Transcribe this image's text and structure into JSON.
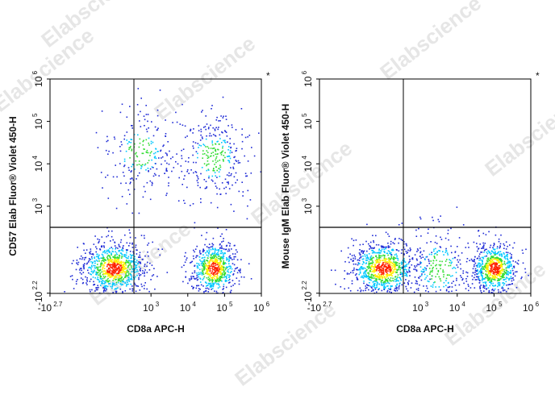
{
  "colors": {
    "frame": "#000000",
    "gate": "#000000",
    "density_low": "#1f2bd6",
    "density_mid1": "#00c8ff",
    "density_mid2": "#33dd33",
    "density_mid3": "#ffee00",
    "density_high": "#ff2200",
    "watermark": "#c9c9c9"
  },
  "watermark": {
    "text": "Elabscience",
    "symbol": "®"
  },
  "chart_data": [
    {
      "type": "scatter",
      "title": "",
      "xlabel": "CD8a APC-H",
      "ylabel": "CD57 Elab Fluor® Violet 450-H",
      "corner_mark": "*",
      "x_scale": "biexponential",
      "y_scale": "biexponential",
      "xlim": [
        -500,
        1000000
      ],
      "ylim": [
        -160,
        1000000
      ],
      "x_ticks": [
        {
          "base": "-10",
          "exp": "2.7"
        },
        {
          "base": "10",
          "exp": "3"
        },
        {
          "base": "10",
          "exp": "4"
        },
        {
          "base": "10",
          "exp": "5"
        },
        {
          "base": "10",
          "exp": "6"
        }
      ],
      "y_ticks": [
        {
          "base": "-10",
          "exp": "2.2"
        },
        {
          "base": "10",
          "exp": "3"
        },
        {
          "base": "10",
          "exp": "4"
        },
        {
          "base": "10",
          "exp": "5"
        },
        {
          "base": "10",
          "exp": "6"
        }
      ],
      "gate": {
        "x": 2000,
        "y": 500
      },
      "populations": [
        {
          "name": "CD8a- CD57-",
          "center_x": 150,
          "center_y": 20,
          "relative_density": 1.0
        },
        {
          "name": "CD8a+ CD57-",
          "center_x": 50000,
          "center_y": 20,
          "relative_density": 0.75
        },
        {
          "name": "CD8a- CD57+",
          "center_x": 500,
          "center_y": 20000,
          "relative_density": 0.25
        },
        {
          "name": "CD8a+ CD57+",
          "center_x": 50000,
          "center_y": 15000,
          "relative_density": 0.35
        }
      ]
    },
    {
      "type": "scatter",
      "title": "",
      "xlabel": "CD8a APC-H",
      "ylabel": "Mouse IgM Elab Fluor® Violet 450-H",
      "corner_mark": "*",
      "x_scale": "biexponential",
      "y_scale": "biexponential",
      "xlim": [
        -500,
        1000000
      ],
      "ylim": [
        -160,
        1000000
      ],
      "x_ticks": [
        {
          "base": "-10",
          "exp": "2.7"
        },
        {
          "base": "10",
          "exp": "3"
        },
        {
          "base": "10",
          "exp": "4"
        },
        {
          "base": "10",
          "exp": "5"
        },
        {
          "base": "10",
          "exp": "6"
        }
      ],
      "y_ticks": [
        {
          "base": "-10",
          "exp": "2.2"
        },
        {
          "base": "10",
          "exp": "3"
        },
        {
          "base": "10",
          "exp": "4"
        },
        {
          "base": "10",
          "exp": "5"
        },
        {
          "base": "10",
          "exp": "6"
        }
      ],
      "gate": {
        "x": 2000,
        "y": 500
      },
      "populations": [
        {
          "name": "CD8a- IgM-",
          "center_x": 150,
          "center_y": 20,
          "relative_density": 1.0
        },
        {
          "name": "CD8a+ IgM-",
          "center_x": 100000,
          "center_y": 20,
          "relative_density": 0.8
        },
        {
          "name": "CD8a mid IgM-",
          "center_x": 3000,
          "center_y": 20,
          "relative_density": 0.3
        }
      ]
    }
  ]
}
